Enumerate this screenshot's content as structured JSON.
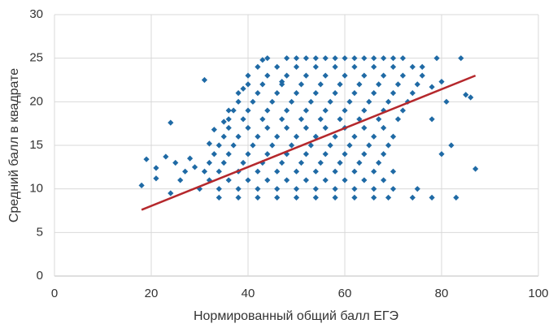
{
  "chart_data": {
    "type": "scatter",
    "xlabel": "Нормированный общий балл ЕГЭ",
    "ylabel": "Средний балл в квадрате",
    "xlim": [
      0,
      100
    ],
    "xticks": [
      0,
      20,
      40,
      60,
      80,
      100
    ],
    "ylim": [
      0,
      30
    ],
    "yticks": [
      0,
      5,
      10,
      15,
      20,
      25,
      30
    ],
    "grid": true,
    "series": [
      {
        "color": "#1f6aa5",
        "x": [
          44,
          48,
          50,
          52,
          54,
          56,
          58,
          60,
          62,
          64,
          66,
          68,
          70,
          72,
          42,
          46,
          50,
          54,
          58,
          62,
          66,
          70,
          74,
          76,
          40,
          44,
          48,
          52,
          56,
          60,
          64,
          68,
          72,
          40,
          43,
          47,
          51,
          55,
          59,
          63,
          67,
          71,
          75,
          38,
          42,
          46,
          50,
          54,
          58,
          62,
          66,
          70,
          74,
          38,
          41,
          45,
          49,
          53,
          57,
          61,
          65,
          69,
          73,
          37,
          40,
          44,
          48,
          52,
          56,
          60,
          64,
          68,
          72,
          36,
          39,
          43,
          47,
          51,
          55,
          59,
          63,
          67,
          71,
          36,
          40,
          44,
          48,
          52,
          56,
          60,
          64,
          68,
          35,
          38,
          42,
          46,
          50,
          54,
          58,
          62,
          66,
          70,
          34,
          37,
          41,
          45,
          49,
          53,
          57,
          61,
          65,
          69,
          33,
          36,
          40,
          44,
          48,
          52,
          56,
          60,
          64,
          68,
          32,
          35,
          39,
          43,
          47,
          51,
          55,
          59,
          63,
          67,
          31,
          34,
          38,
          42,
          46,
          50,
          54,
          58,
          62,
          66,
          70,
          32,
          36,
          40,
          44,
          48,
          52,
          56,
          60,
          64,
          68,
          30,
          34,
          38,
          42,
          46,
          50,
          54,
          58,
          62,
          66,
          70,
          34,
          38,
          42,
          46,
          50,
          54,
          58,
          62,
          66,
          69,
          18,
          19,
          21,
          21,
          23,
          24,
          24,
          25,
          26,
          27,
          28,
          29,
          31,
          32,
          33,
          35,
          36,
          39,
          43,
          47,
          76,
          78,
          78,
          79,
          80,
          81,
          82,
          83,
          84,
          85,
          86,
          87,
          78,
          74,
          75,
          80
        ],
        "values": [
          25,
          25,
          25,
          25,
          25,
          25,
          25,
          25,
          25,
          25,
          25,
          25,
          25,
          25,
          24,
          24,
          24,
          24,
          24,
          24,
          24,
          24,
          24,
          24,
          23,
          23,
          23,
          23,
          23,
          23,
          23,
          23,
          23,
          22,
          22,
          22,
          22,
          22,
          22,
          22,
          22,
          22,
          22,
          21,
          21,
          21,
          21,
          21,
          21,
          21,
          21,
          21,
          21,
          20,
          20,
          20,
          20,
          20,
          20,
          20,
          20,
          20,
          20,
          19,
          19,
          19,
          19,
          19,
          19,
          19,
          19,
          19,
          19,
          18,
          18,
          18,
          18,
          18,
          18,
          18,
          18,
          18,
          18,
          17,
          17,
          17,
          17,
          17,
          17,
          17,
          17,
          17,
          16,
          16,
          16,
          16,
          16,
          16,
          16,
          16,
          16,
          16,
          15,
          15,
          15,
          15,
          15,
          15,
          15,
          15,
          15,
          15,
          14,
          14,
          14,
          14,
          14,
          14,
          14,
          14,
          14,
          14,
          13,
          13,
          13,
          13,
          13,
          13,
          13,
          13,
          13,
          13,
          12,
          12,
          12,
          12,
          12,
          12,
          12,
          12,
          12,
          12,
          12,
          11,
          11,
          11,
          11,
          11,
          11,
          11,
          11,
          11,
          11,
          10,
          10,
          10,
          10,
          10,
          10,
          10,
          10,
          10,
          10,
          10,
          9,
          9,
          9,
          9,
          9,
          9,
          9,
          9,
          9,
          9,
          10.4,
          13.4,
          12.4,
          11.2,
          13.7,
          17.6,
          9.5,
          13,
          11,
          12,
          13.5,
          12.5,
          22.5,
          15.2,
          16.8,
          17.7,
          19,
          21.5,
          24.8,
          22.3,
          23,
          21.7,
          18,
          25,
          22.3,
          20,
          15,
          9,
          25,
          20.8,
          20.5,
          12.3,
          9,
          9,
          10,
          14
        ]
      }
    ],
    "trendline": {
      "color": "#b5282c",
      "x": [
        18,
        87
      ],
      "values": [
        7.6,
        23
      ]
    }
  }
}
